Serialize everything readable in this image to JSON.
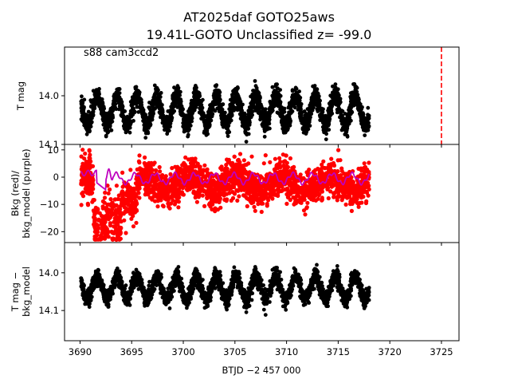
{
  "title_lines": [
    "AT2025daf  GOTO25aws",
    "19.41L-GOTO Unclassified z= -99.0"
  ],
  "annotation": "s88 cam3ccd2",
  "xlabel": "BTJD −2 457 000",
  "colors": {
    "data": "#000000",
    "bkg": "#ff0000",
    "bkg_model": "#bf00bf",
    "marker_line": "#ff0000"
  },
  "chart_data": [
    {
      "type": "scatter",
      "name": "tmag",
      "ylabel": [
        "T mag"
      ],
      "xlim": [
        3688.5,
        3726.7
      ],
      "ylim": [
        14.1,
        13.9
      ],
      "yticks": [
        14.0,
        14.1
      ],
      "ytick_labels": [
        "14.0",
        "14.1"
      ],
      "xticks": [
        3690,
        3695,
        3700,
        3705,
        3710,
        3715,
        3720,
        3725
      ],
      "show_xtick_labels": false,
      "series": [
        {
          "name": "T mag",
          "color": "#000000",
          "x_range": [
            3690.1,
            3718.0
          ],
          "center": 14.03,
          "period": 1.92,
          "amplitude": 0.03,
          "scatter": 0.02
        }
      ],
      "vline": {
        "x": 3725.0,
        "style": "dashed",
        "color": "#ff0000"
      }
    },
    {
      "type": "scatter",
      "name": "background",
      "ylabel": [
        "Bkg (red)/",
        "bkg_model (purple)"
      ],
      "xlim": [
        3688.5,
        3726.7
      ],
      "ylim": [
        -24,
        12
      ],
      "yticks": [
        10,
        0,
        -10,
        -20
      ],
      "ytick_labels": [
        "10",
        "0",
        "−10",
        "−20"
      ],
      "xticks": [
        3690,
        3695,
        3700,
        3705,
        3710,
        3715,
        3720,
        3725
      ],
      "show_xtick_labels": false,
      "series": [
        {
          "name": "Bkg",
          "color": "#ff0000",
          "x_range": [
            3690.1,
            3718.0
          ]
        },
        {
          "name": "bkg_model",
          "color": "#bf00bf",
          "x_range": [
            3690.1,
            3718.0
          ]
        }
      ]
    },
    {
      "type": "scatter",
      "name": "detrended",
      "ylabel": [
        "T mag −",
        "bkg_model"
      ],
      "xlim": [
        3688.5,
        3726.7
      ],
      "ylim": [
        14.18,
        13.92
      ],
      "yticks": [
        14.0,
        14.1
      ],
      "ytick_labels": [
        "14.0",
        "14.1"
      ],
      "xticks": [
        3690,
        3695,
        3700,
        3705,
        3710,
        3715,
        3720,
        3725
      ],
      "xtick_labels": [
        "3690",
        "3695",
        "3700",
        "3705",
        "3710",
        "3715",
        "3720",
        "3725"
      ],
      "show_xtick_labels": true,
      "series": [
        {
          "name": "T mag − bkg_model",
          "color": "#000000",
          "x_range": [
            3690.1,
            3718.0
          ],
          "center": 14.04,
          "period": 1.92,
          "amplitude": 0.03,
          "scatter": 0.02
        }
      ]
    }
  ]
}
